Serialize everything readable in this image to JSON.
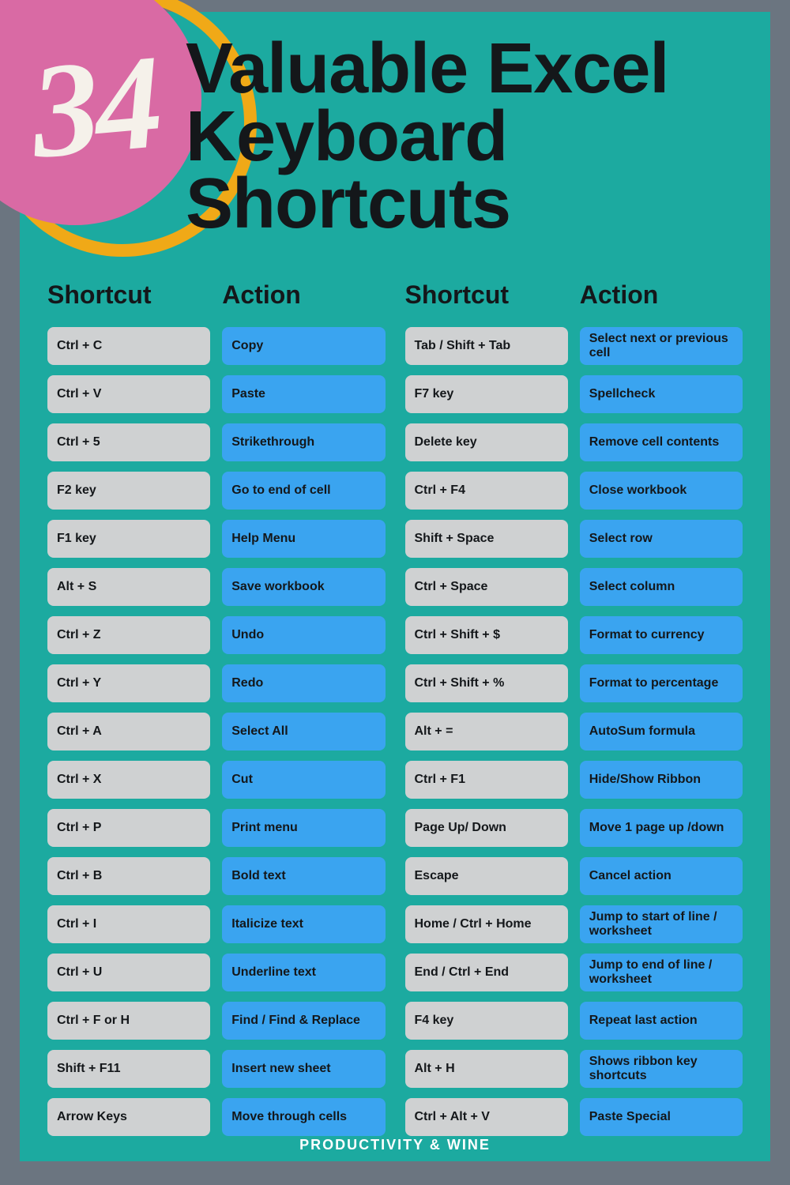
{
  "header": {
    "number": "34",
    "title_line1": "Valuable Excel",
    "title_line2": "Keyboard Shortcuts"
  },
  "headers": {
    "shortcut": "Shortcut",
    "action": "Action"
  },
  "colors": {
    "background": "#1caaa0",
    "frame": "#6b7580",
    "ring": "#f0a917",
    "pink": "#d96aa4",
    "number": "#f5f1ea",
    "heading": "#14171a",
    "shortcut_bg": "#cfd1d2",
    "action_bg": "#3aa4f0"
  },
  "left": [
    {
      "shortcut": "Ctrl + C",
      "action": "Copy"
    },
    {
      "shortcut": "Ctrl + V",
      "action": "Paste"
    },
    {
      "shortcut": "Ctrl + 5",
      "action": "Strikethrough"
    },
    {
      "shortcut": "F2 key",
      "action": "Go to end of cell"
    },
    {
      "shortcut": "F1 key",
      "action": "Help Menu"
    },
    {
      "shortcut": "Alt + S",
      "action": "Save workbook"
    },
    {
      "shortcut": "Ctrl + Z",
      "action": "Undo"
    },
    {
      "shortcut": "Ctrl + Y",
      "action": "Redo"
    },
    {
      "shortcut": "Ctrl + A",
      "action": "Select All"
    },
    {
      "shortcut": "Ctrl + X",
      "action": "Cut"
    },
    {
      "shortcut": "Ctrl + P",
      "action": "Print menu"
    },
    {
      "shortcut": "Ctrl + B",
      "action": "Bold text"
    },
    {
      "shortcut": "Ctrl + I",
      "action": "Italicize text"
    },
    {
      "shortcut": "Ctrl + U",
      "action": "Underline text"
    },
    {
      "shortcut": "Ctrl + F or H",
      "action": "Find / Find & Replace"
    },
    {
      "shortcut": "Shift + F11",
      "action": "Insert new sheet"
    },
    {
      "shortcut": "Arrow Keys",
      "action": "Move through cells"
    }
  ],
  "right": [
    {
      "shortcut": "Tab / Shift + Tab",
      "action": "Select next or previous cell"
    },
    {
      "shortcut": "F7 key",
      "action": "Spellcheck"
    },
    {
      "shortcut": "Delete key",
      "action": "Remove cell contents"
    },
    {
      "shortcut": "Ctrl + F4",
      "action": "Close workbook"
    },
    {
      "shortcut": "Shift + Space",
      "action": "Select row"
    },
    {
      "shortcut": "Ctrl + Space",
      "action": "Select column"
    },
    {
      "shortcut": "Ctrl + Shift + $",
      "action": "Format to currency"
    },
    {
      "shortcut": "Ctrl + Shift + %",
      "action": "Format to percentage"
    },
    {
      "shortcut": "Alt + =",
      "action": "AutoSum formula"
    },
    {
      "shortcut": "Ctrl + F1",
      "action": "Hide/Show Ribbon"
    },
    {
      "shortcut": "Page Up/ Down",
      "action": "Move 1 page up /down"
    },
    {
      "shortcut": "Escape",
      "action": "Cancel action"
    },
    {
      "shortcut": "Home / Ctrl + Home",
      "action": "Jump to start of line / worksheet"
    },
    {
      "shortcut": "End / Ctrl + End",
      "action": "Jump to end of line / worksheet"
    },
    {
      "shortcut": "F4 key",
      "action": "Repeat last action"
    },
    {
      "shortcut": "Alt + H",
      "action": "Shows ribbon key shortcuts"
    },
    {
      "shortcut": "Ctrl + Alt + V",
      "action": "Paste Special"
    }
  ],
  "footer": "PRODUCTIVITY & WINE"
}
